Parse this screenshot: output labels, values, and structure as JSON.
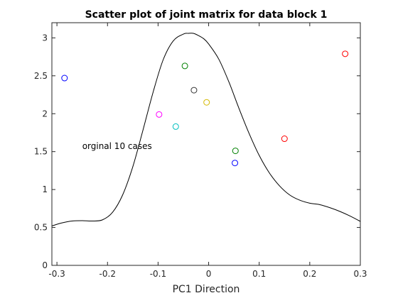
{
  "chart_data": {
    "type": "scatter",
    "title": "Scatter plot of joint matrix for data block 1",
    "xlabel": "PC1 Direction",
    "ylabel": "",
    "xlim": [
      -0.31,
      0.3
    ],
    "ylim": [
      0,
      3.2
    ],
    "xticks": [
      -0.3,
      -0.2,
      -0.1,
      0,
      0.1,
      0.2,
      0.3
    ],
    "xtick_labels": [
      "-0.3",
      "-0.2",
      "-0.1",
      "0",
      "0.1",
      "0.2",
      "0.3"
    ],
    "yticks": [
      0,
      0.5,
      1,
      1.5,
      2,
      2.5,
      3
    ],
    "ytick_labels": [
      "0",
      "0.5",
      "1",
      "1.5",
      "2",
      "2.5",
      "3"
    ],
    "grid": false,
    "points": [
      {
        "x": -0.285,
        "y": 2.47,
        "color": "#0000ff"
      },
      {
        "x": -0.047,
        "y": 2.63,
        "color": "#008000"
      },
      {
        "x": -0.029,
        "y": 2.31,
        "color": "#333333"
      },
      {
        "x": -0.004,
        "y": 2.15,
        "color": "#d4b800"
      },
      {
        "x": -0.098,
        "y": 1.99,
        "color": "#ff00ff"
      },
      {
        "x": -0.065,
        "y": 1.83,
        "color": "#00bfbf"
      },
      {
        "x": 0.053,
        "y": 1.51,
        "color": "#008000"
      },
      {
        "x": 0.052,
        "y": 1.35,
        "color": "#0000ff"
      },
      {
        "x": 0.15,
        "y": 1.67,
        "color": "#ff0000"
      },
      {
        "x": 0.27,
        "y": 2.79,
        "color": "#ff0000"
      }
    ],
    "curve": {
      "color": "#000000",
      "x": [
        -0.31,
        -0.29,
        -0.27,
        -0.25,
        -0.23,
        -0.21,
        -0.19,
        -0.17,
        -0.15,
        -0.13,
        -0.11,
        -0.09,
        -0.07,
        -0.05,
        -0.04,
        -0.03,
        -0.02,
        -0.01,
        0.0,
        0.02,
        0.04,
        0.06,
        0.08,
        0.1,
        0.12,
        0.14,
        0.16,
        0.18,
        0.2,
        0.22,
        0.24,
        0.26,
        0.28,
        0.3
      ],
      "y": [
        0.52,
        0.56,
        0.585,
        0.59,
        0.585,
        0.6,
        0.7,
        0.93,
        1.3,
        1.78,
        2.28,
        2.71,
        2.96,
        3.05,
        3.06,
        3.06,
        3.03,
        2.99,
        2.92,
        2.72,
        2.42,
        2.07,
        1.74,
        1.45,
        1.22,
        1.05,
        0.93,
        0.86,
        0.82,
        0.8,
        0.76,
        0.71,
        0.65,
        0.58
      ]
    },
    "annotations": [
      {
        "text": "orginal 10 cases",
        "x": -0.25,
        "y": 1.57
      }
    ]
  }
}
